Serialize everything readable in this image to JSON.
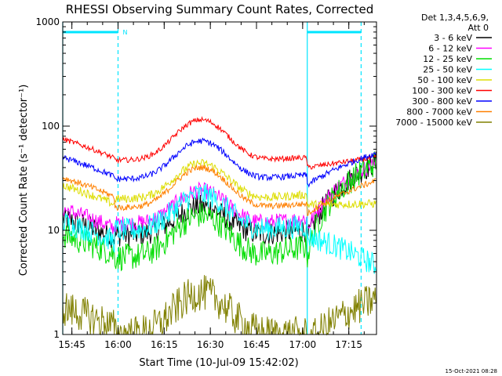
{
  "chart_data": {
    "type": "line",
    "title": "RHESSI Observing Summary Count Rates, Corrected",
    "xlabel": "Start Time (10-Jul-09 15:42:02)",
    "ylabel": "Corrected Count Rate (s⁻¹ detector⁻¹)",
    "y_scale": "log",
    "ylim": [
      1,
      1000
    ],
    "xlim": [
      "15:42:02",
      "17:24:00"
    ],
    "x_tick_labels": [
      "15:45",
      "16:00",
      "16:15",
      "16:30",
      "16:45",
      "17:00",
      "17:15"
    ],
    "y_tick_labels": [
      "1",
      "10",
      "100",
      "1000"
    ],
    "detector_info": [
      "Det 1,3,4,5,6,9,",
      "Att 0"
    ],
    "footer_date": "15-Oct-2021 08:28",
    "annotations": {
      "night_marker": "N",
      "night_intervals": [
        [
          "15:42:02",
          "16:00:00"
        ],
        [
          "17:01:30",
          "17:19:00"
        ]
      ]
    },
    "series": [
      {
        "name": "3 - 6 keV",
        "color": "#000000",
        "pre": 13,
        "day_base": 9,
        "peak": 17,
        "post": 10,
        "end": 45,
        "noise": 1.3
      },
      {
        "name": "6 - 12 keV",
        "color": "#ff00ff",
        "pre": 16,
        "day_base": 11.5,
        "peak": 24,
        "post": 13,
        "end": 45,
        "noise": 1.2
      },
      {
        "name": "12 - 25 keV",
        "color": "#00dd00",
        "pre": 9,
        "day_base": 5.5,
        "peak": 14,
        "post": 7,
        "end": 45,
        "noise": 1.35
      },
      {
        "name": "25 - 50 keV",
        "color": "#00ffff",
        "pre": 12,
        "day_base": 10,
        "peak": 22,
        "post": 11,
        "end": 4.5,
        "noise": 1.3
      },
      {
        "name": "50 - 100 keV",
        "color": "#dddd00",
        "pre": 27,
        "day_base": 20,
        "peak": 44,
        "post": 22,
        "end": 18,
        "noise": 1.1
      },
      {
        "name": "100 - 300 keV",
        "color": "#ff0000",
        "pre": 75,
        "day_base": 47,
        "peak": 115,
        "post": 50,
        "end": 50,
        "noise": 1.06
      },
      {
        "name": "300 - 800 keV",
        "color": "#0000ff",
        "pre": 50,
        "day_base": 31,
        "peak": 72,
        "post": 34,
        "end": 55,
        "noise": 1.07
      },
      {
        "name": "800 - 7000 keV",
        "color": "#ff8000",
        "pre": 32,
        "day_base": 16.5,
        "peak": 40,
        "post": 18,
        "end": 30,
        "noise": 1.07
      },
      {
        "name": "7000 - 15000 keV",
        "color": "#808000",
        "pre": 1.8,
        "day_base": 1,
        "peak": 2.5,
        "post": 1,
        "end": 2.2,
        "noise": 1.5
      }
    ]
  }
}
